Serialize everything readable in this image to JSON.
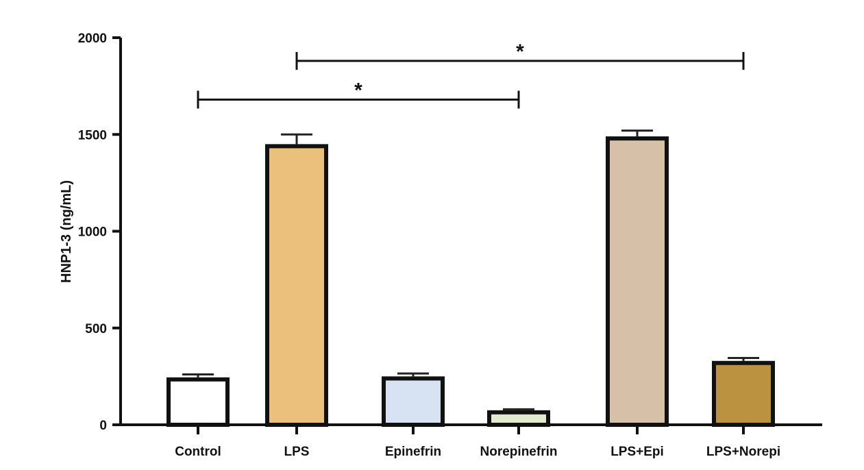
{
  "chart_data": {
    "type": "bar",
    "title": "",
    "xlabel": "",
    "ylabel": "HNP1-3 (ng/mL)",
    "ylim": [
      0,
      2000
    ],
    "yticks": [
      0,
      500,
      1000,
      1500,
      2000
    ],
    "categories": [
      "Control",
      "LPS",
      "Epinefrin",
      "Norepinefrin",
      "LPS+Epi",
      "LPS+Norepi"
    ],
    "values": [
      245,
      1450,
      250,
      75,
      1490,
      330
    ],
    "errors": [
      15,
      50,
      15,
      5,
      30,
      15
    ],
    "colors": [
      "#ffffff",
      "#ebc07c",
      "#d7e2f2",
      "#e3ebcf",
      "#d7c0a8",
      "#bb9240"
    ],
    "significance": [
      {
        "from": "Control",
        "to": "Norepinefrin",
        "label": "*",
        "level": 1680
      },
      {
        "from": "LPS",
        "to": "LPS+Norepi",
        "label": "*",
        "level": 1880
      }
    ],
    "grid": false,
    "legend": "none"
  }
}
